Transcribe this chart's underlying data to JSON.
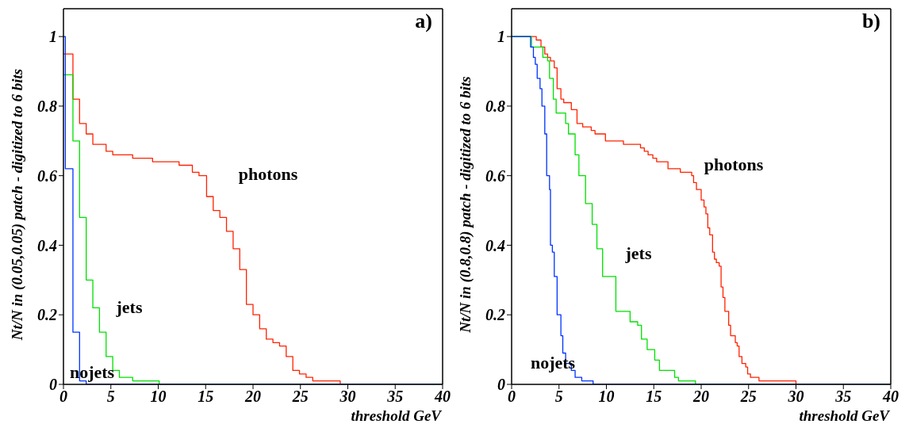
{
  "chart_data": [
    {
      "type": "step",
      "title": "a)",
      "xlabel": "threshold GeV",
      "ylabel": "Nt/N in (0.05,0.05) patch - digitized to 6 bits",
      "xlim": [
        0,
        40
      ],
      "xticks": [
        0,
        5,
        10,
        15,
        20,
        25,
        30,
        35,
        40
      ],
      "ylim": [
        0,
        1.08
      ],
      "yticks": [
        0,
        0.2,
        0.4,
        0.6,
        0.8,
        1
      ],
      "series": [
        {
          "color": "#ff2200",
          "x": [
            0,
            1.0,
            1.7,
            2.4,
            3.1,
            4.5,
            5.2,
            7.3,
            9.4,
            12.2,
            13.6,
            14.3,
            15.1,
            15.8,
            16.5,
            17.2,
            17.9,
            18.6,
            19.3,
            20.0,
            20.7,
            21.4,
            22.1,
            22.8,
            23.5,
            24.2,
            24.9,
            25.6,
            26.3,
            29.2,
            40
          ],
          "values": [
            0.95,
            0.82,
            0.75,
            0.72,
            0.69,
            0.67,
            0.66,
            0.65,
            0.64,
            0.63,
            0.61,
            0.6,
            0.54,
            0.5,
            0.48,
            0.44,
            0.39,
            0.33,
            0.23,
            0.2,
            0.16,
            0.13,
            0.12,
            0.11,
            0.08,
            0.04,
            0.03,
            0.02,
            0.01,
            0,
            0
          ]
        },
        {
          "color": "#00e000",
          "x": [
            0,
            1.0,
            1.7,
            2.4,
            3.1,
            3.8,
            4.5,
            5.2,
            5.9,
            7.3,
            10.1,
            40
          ],
          "values": [
            0.89,
            0.7,
            0.48,
            0.3,
            0.22,
            0.15,
            0.08,
            0.04,
            0.02,
            0.01,
            0,
            0
          ]
        },
        {
          "color": "#0033ff",
          "x": [
            0,
            0.2,
            1.0,
            1.7,
            2.4,
            40
          ],
          "values": [
            1,
            0.62,
            0.15,
            0.01,
            0,
            0
          ]
        }
      ],
      "annotations": [
        "photons",
        "jets",
        "nojets"
      ]
    },
    {
      "type": "step",
      "title": "b)",
      "xlabel": "threshold GeV",
      "ylabel": "Nt/N in (0.8,0.8) patch - digitized to 6 bits",
      "xlim": [
        0,
        40
      ],
      "xticks": [
        0,
        5,
        10,
        15,
        20,
        25,
        30,
        35,
        40
      ],
      "ylim": [
        0,
        1.08
      ],
      "yticks": [
        0,
        0.2,
        0.4,
        0.6,
        0.8,
        1
      ],
      "series": [
        {
          "color": "#ff2200",
          "x": [
            0,
            2.6,
            3.1,
            3.5,
            3.8,
            4.1,
            4.5,
            4.8,
            5.2,
            5.5,
            6.3,
            6.9,
            7.5,
            8.4,
            8.8,
            9.9,
            11.8,
            13.6,
            14.0,
            14.4,
            14.9,
            15.3,
            16.5,
            17.8,
            19.0,
            19.2,
            19.5,
            20.0,
            20.3,
            20.5,
            20.7,
            20.9,
            21.2,
            21.4,
            21.6,
            21.9,
            22.1,
            22.3,
            22.5,
            22.9,
            23.1,
            23.6,
            23.8,
            24.0,
            24.3,
            24.7,
            24.9,
            25.2,
            26.1,
            30.0,
            40
          ],
          "values": [
            1,
            0.99,
            0.97,
            0.95,
            0.94,
            0.93,
            0.91,
            0.85,
            0.82,
            0.81,
            0.79,
            0.75,
            0.74,
            0.73,
            0.72,
            0.7,
            0.69,
            0.68,
            0.67,
            0.66,
            0.65,
            0.64,
            0.62,
            0.61,
            0.6,
            0.58,
            0.56,
            0.53,
            0.51,
            0.49,
            0.45,
            0.43,
            0.38,
            0.36,
            0.35,
            0.34,
            0.28,
            0.25,
            0.21,
            0.17,
            0.14,
            0.12,
            0.11,
            0.08,
            0.06,
            0.05,
            0.03,
            0.02,
            0.01,
            0,
            0
          ]
        },
        {
          "color": "#00e000",
          "x": [
            0,
            2.1,
            3.3,
            3.8,
            4.0,
            4.4,
            4.7,
            5.7,
            6.0,
            6.7,
            7.1,
            7.8,
            8.5,
            9.0,
            9.6,
            11.0,
            12.5,
            13.3,
            13.7,
            14.3,
            15.1,
            15.6,
            17.2,
            17.6,
            19.4,
            40
          ],
          "values": [
            1,
            0.97,
            0.94,
            0.93,
            0.88,
            0.82,
            0.78,
            0.75,
            0.72,
            0.66,
            0.6,
            0.52,
            0.46,
            0.39,
            0.31,
            0.21,
            0.18,
            0.17,
            0.13,
            0.1,
            0.07,
            0.04,
            0.02,
            0.01,
            0,
            0
          ]
        },
        {
          "color": "#0033ff",
          "x": [
            0,
            2.0,
            2.3,
            2.5,
            2.7,
            3.0,
            3.2,
            3.5,
            3.7,
            4.0,
            4.1,
            4.3,
            4.5,
            4.8,
            5.2,
            5.4,
            5.7,
            6.3,
            6.7,
            7.4,
            8.6,
            40
          ],
          "values": [
            1,
            0.97,
            0.94,
            0.92,
            0.88,
            0.85,
            0.8,
            0.72,
            0.6,
            0.56,
            0.4,
            0.38,
            0.31,
            0.2,
            0.14,
            0.09,
            0.06,
            0.04,
            0.02,
            0.01,
            0,
            0
          ]
        }
      ],
      "annotations": [
        "photons",
        "jets",
        "nojets"
      ]
    }
  ]
}
